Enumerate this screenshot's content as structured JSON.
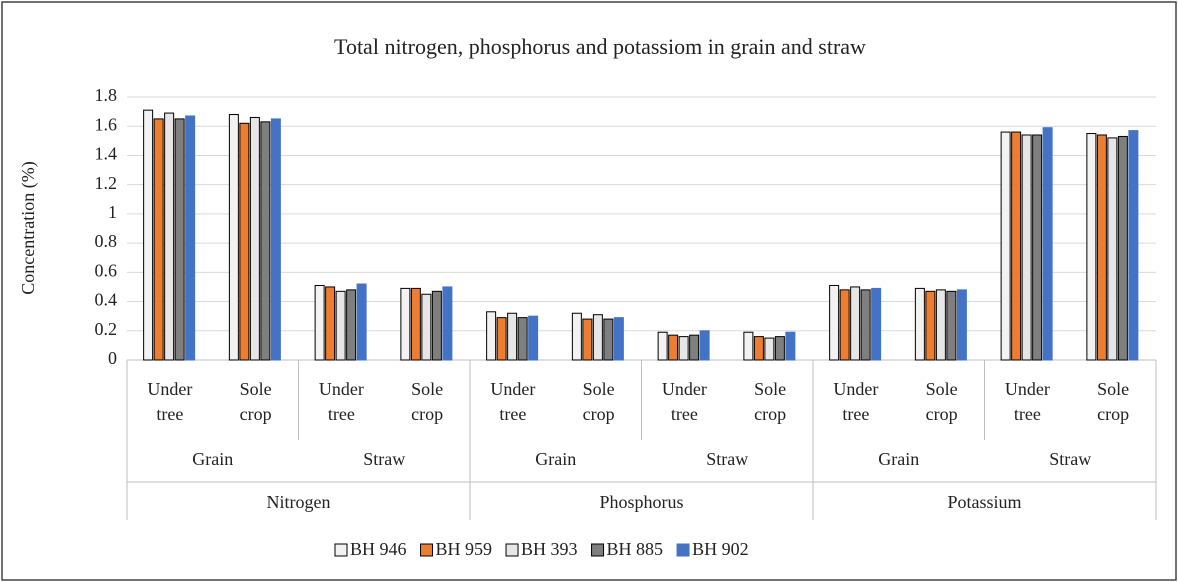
{
  "chart_data": {
    "type": "bar",
    "title": "Total  nitrogen, phosphorus and potassiom in grain and straw",
    "y_label": "Concentration (%)",
    "category_groups": [
      {
        "name": "Nitrogen",
        "groups": [
          {
            "name": "Grain",
            "categories": [
              "Under tree",
              "Sole crop"
            ]
          },
          {
            "name": "Straw",
            "categories": [
              "Under tree",
              "Sole crop"
            ]
          }
        ]
      },
      {
        "name": "Phosphorus",
        "groups": [
          {
            "name": "Grain",
            "categories": [
              "Under tree",
              "Sole crop"
            ]
          },
          {
            "name": "Straw",
            "categories": [
              "Under tree",
              "Sole crop"
            ]
          }
        ]
      },
      {
        "name": "Potassium",
        "groups": [
          {
            "name": "Grain",
            "categories": [
              "Under tree",
              "Sole crop"
            ]
          },
          {
            "name": "Straw",
            "categories": [
              "Under tree",
              "Sole crop"
            ]
          }
        ]
      }
    ],
    "series": [
      {
        "name": "BH 946",
        "color": "#f2f2f2",
        "values": [
          1.71,
          1.68,
          0.51,
          0.49,
          0.33,
          0.32,
          0.19,
          0.19,
          0.51,
          0.49,
          1.56,
          1.55
        ]
      },
      {
        "name": "BH 959",
        "color": "#ed7d31",
        "values": [
          1.65,
          1.62,
          0.5,
          0.49,
          0.29,
          0.28,
          0.17,
          0.16,
          0.48,
          0.47,
          1.56,
          1.54
        ]
      },
      {
        "name": "BH 393",
        "color": "#e7e6e6",
        "values": [
          1.69,
          1.66,
          0.47,
          0.45,
          0.32,
          0.31,
          0.16,
          0.15,
          0.5,
          0.48,
          1.54,
          1.52
        ]
      },
      {
        "name": "BH 885",
        "color": "#7f7f7f",
        "values": [
          1.65,
          1.63,
          0.48,
          0.47,
          0.29,
          0.28,
          0.17,
          0.16,
          0.48,
          0.47,
          1.54,
          1.53
        ]
      },
      {
        "name": "BH 902",
        "color": "#4472c4",
        "values": [
          1.67,
          1.65,
          0.52,
          0.5,
          0.3,
          0.29,
          0.2,
          0.19,
          0.49,
          0.48,
          1.59,
          1.57
        ]
      }
    ],
    "ylim": [
      0,
      1.8
    ],
    "yticks": [
      0,
      {
        "value": 0.2,
        "label": "0.2"
      },
      {
        "value": 0.4,
        "label": "0.4"
      },
      {
        "value": 0.6,
        "label": "0.6"
      },
      {
        "value": 0.8,
        "label": "0.8"
      },
      1,
      {
        "value": 1.2,
        "label": "1.2"
      },
      {
        "value": 1.4,
        "label": "1.4"
      },
      {
        "value": 1.6,
        "label": "1.6"
      },
      {
        "value": 1.8,
        "label": "1.8"
      }
    ],
    "grid": true,
    "legend": "bottom"
  }
}
